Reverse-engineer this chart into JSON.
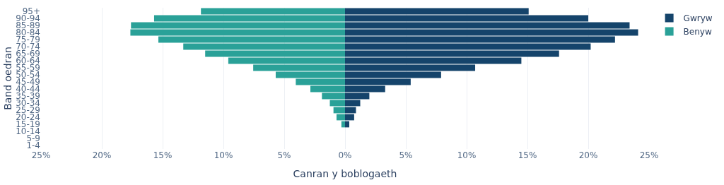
{
  "chart_data": {
    "type": "bar",
    "orientation": "horizontal",
    "xlabel": "Canran y boblogaeth",
    "ylabel": "Band oedran",
    "categories": [
      "95+",
      "90-94",
      "85-89",
      "80-84",
      "75-79",
      "70-74",
      "65-69",
      "60-64",
      "55-59",
      "50-54",
      "45-49",
      "40-44",
      "35-39",
      "30-34",
      "25-29",
      "20-24",
      "15-19",
      "10-14",
      "5-9",
      "1-4"
    ],
    "series": [
      {
        "name": "Gwryw",
        "color": "#15446b",
        "values": [
          15.1,
          20.0,
          23.4,
          24.1,
          22.2,
          20.2,
          17.6,
          14.5,
          10.7,
          7.9,
          5.4,
          3.3,
          2.0,
          1.25,
          0.9,
          0.75,
          0.35,
          0,
          0,
          0
        ]
      },
      {
        "name": "Benyw",
        "color": "#2aa198",
        "values": [
          -11.85,
          -15.7,
          -17.6,
          -17.65,
          -15.35,
          -13.3,
          -11.5,
          -9.6,
          -7.55,
          -5.7,
          -4.05,
          -2.85,
          -1.9,
          -1.25,
          -0.95,
          -0.7,
          -0.3,
          0,
          0,
          0
        ]
      }
    ],
    "xlim": [
      -25,
      25
    ],
    "stacked": true,
    "xticks": [
      {
        "value": -25,
        "label": "25%"
      },
      {
        "value": -20,
        "label": "20%"
      },
      {
        "value": -15,
        "label": "15%"
      },
      {
        "value": -10,
        "label": "10%"
      },
      {
        "value": -5,
        "label": "5%"
      },
      {
        "value": 0,
        "label": "0%"
      },
      {
        "value": 5,
        "label": "5%"
      },
      {
        "value": 10,
        "label": "10%"
      },
      {
        "value": 15,
        "label": "15%"
      },
      {
        "value": 20,
        "label": "20%"
      },
      {
        "value": 25,
        "label": "25%"
      }
    ],
    "grid": "x",
    "legend": "top right"
  }
}
